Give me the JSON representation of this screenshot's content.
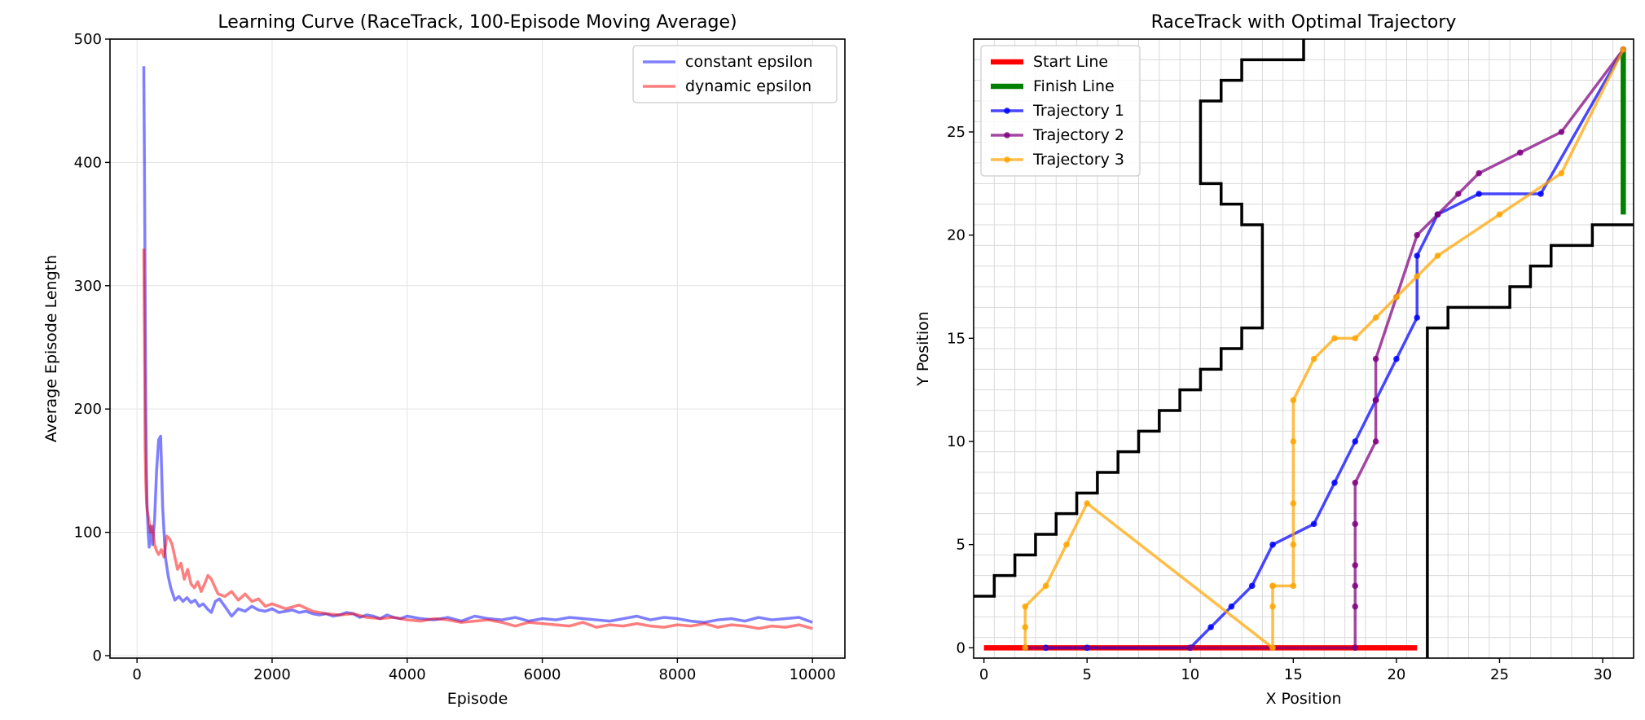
{
  "chart_data": [
    {
      "type": "line",
      "title": "Learning Curve (RaceTrack, 100-Episode Moving Average)",
      "xlabel": "Episode",
      "ylabel": "Average Episode Length",
      "xlim": [
        -400,
        10480
      ],
      "ylim": [
        -2,
        500
      ],
      "xticks": [
        0,
        2000,
        4000,
        6000,
        8000,
        10000
      ],
      "yticks": [
        0,
        100,
        200,
        300,
        400,
        500
      ],
      "grid": true,
      "legend": "top-right",
      "series": [
        {
          "name": "constant epsilon",
          "color": "#0000ff",
          "opacity": 0.5,
          "x": [
            100,
            110,
            120,
            130,
            140,
            150,
            165,
            180,
            200,
            230,
            260,
            290,
            320,
            350,
            380,
            420,
            460,
            500,
            560,
            620,
            680,
            740,
            800,
            860,
            920,
            980,
            1040,
            1100,
            1160,
            1220,
            1300,
            1400,
            1500,
            1600,
            1700,
            1800,
            1900,
            2000,
            2100,
            2200,
            2300,
            2400,
            2500,
            2600,
            2700,
            2800,
            2900,
            3000,
            3100,
            3200,
            3300,
            3400,
            3500,
            3600,
            3700,
            3800,
            3900,
            4000,
            4200,
            4400,
            4600,
            4800,
            5000,
            5200,
            5400,
            5600,
            5800,
            6000,
            6200,
            6400,
            6600,
            6800,
            7000,
            7200,
            7400,
            7600,
            7800,
            8000,
            8200,
            8400,
            8600,
            8800,
            9000,
            9200,
            9400,
            9600,
            9800,
            10000
          ],
          "y": [
            478,
            400,
            300,
            200,
            150,
            120,
            100,
            88,
            105,
            90,
            110,
            150,
            175,
            178,
            120,
            80,
            65,
            55,
            45,
            48,
            44,
            47,
            43,
            45,
            40,
            42,
            38,
            35,
            44,
            46,
            40,
            32,
            38,
            36,
            40,
            37,
            36,
            38,
            35,
            36,
            37,
            35,
            36,
            34,
            33,
            34,
            32,
            33,
            35,
            34,
            31,
            33,
            32,
            30,
            33,
            31,
            30,
            32,
            30,
            29,
            31,
            28,
            32,
            30,
            29,
            31,
            28,
            30,
            29,
            31,
            30,
            29,
            28,
            30,
            32,
            29,
            31,
            30,
            28,
            27,
            29,
            30,
            28,
            31,
            29,
            30,
            31,
            27
          ]
        },
        {
          "name": "dynamic epsilon",
          "color": "#ff0000",
          "opacity": 0.5,
          "x": [
            100,
            110,
            120,
            130,
            140,
            150,
            170,
            200,
            230,
            260,
            290,
            320,
            360,
            400,
            440,
            480,
            520,
            560,
            600,
            650,
            700,
            750,
            800,
            850,
            900,
            950,
            1000,
            1050,
            1100,
            1150,
            1200,
            1300,
            1400,
            1500,
            1600,
            1700,
            1800,
            1900,
            2000,
            2200,
            2400,
            2600,
            2800,
            3000,
            3200,
            3400,
            3600,
            3800,
            4000,
            4200,
            4400,
            4600,
            4800,
            5000,
            5200,
            5400,
            5600,
            5800,
            6000,
            6200,
            6400,
            6600,
            6800,
            7000,
            7200,
            7400,
            7600,
            7800,
            8000,
            8200,
            8400,
            8600,
            8800,
            9000,
            9200,
            9400,
            9600,
            9800,
            10000
          ],
          "y": [
            330,
            260,
            170,
            140,
            125,
            118,
            112,
            100,
            105,
            90,
            85,
            82,
            86,
            80,
            97,
            95,
            90,
            80,
            70,
            75,
            62,
            70,
            58,
            55,
            60,
            52,
            58,
            65,
            62,
            56,
            50,
            48,
            52,
            45,
            50,
            44,
            46,
            40,
            42,
            38,
            41,
            36,
            34,
            33,
            34,
            31,
            30,
            31,
            29,
            28,
            30,
            29,
            27,
            28,
            29,
            27,
            24,
            27,
            26,
            25,
            24,
            27,
            23,
            25,
            24,
            26,
            24,
            23,
            25,
            24,
            26,
            23,
            25,
            24,
            22,
            24,
            23,
            25,
            22
          ]
        }
      ]
    },
    {
      "type": "line",
      "title": "RaceTrack with Optimal Trajectory",
      "xlabel": "X Position",
      "ylabel": "Y Position",
      "xlim": [
        -0.5,
        31.5
      ],
      "ylim": [
        -0.5,
        29.5
      ],
      "xticks": [
        0,
        5,
        10,
        15,
        20,
        25,
        30
      ],
      "yticks": [
        0,
        5,
        10,
        15,
        20,
        25
      ],
      "grid": true,
      "legend": "top-left",
      "boundary_left": {
        "color": "#000000",
        "x": [
          -0.5,
          0.5,
          0.5,
          1.5,
          1.5,
          2.5,
          2.5,
          3.5,
          3.5,
          4.5,
          4.5,
          5.5,
          5.5,
          6.5,
          6.5,
          7.5,
          7.5,
          8.5,
          8.5,
          9.5,
          9.5,
          10.5,
          10.5,
          11.5,
          11.5,
          12.5,
          12.5,
          13.5,
          13.5,
          12.5,
          12.5,
          11.5,
          11.5,
          10.5,
          10.5,
          11.5,
          11.5,
          12.5,
          12.5,
          15.5,
          15.5
        ],
        "y": [
          2.5,
          2.5,
          3.5,
          3.5,
          4.5,
          4.5,
          5.5,
          5.5,
          6.5,
          6.5,
          7.5,
          7.5,
          8.5,
          8.5,
          9.5,
          9.5,
          10.5,
          10.5,
          11.5,
          11.5,
          12.5,
          12.5,
          13.5,
          13.5,
          14.5,
          14.5,
          15.5,
          15.5,
          20.5,
          20.5,
          21.5,
          21.5,
          22.5,
          22.5,
          26.5,
          26.5,
          27.5,
          27.5,
          28.5,
          28.5,
          29.5
        ]
      },
      "boundary_right": {
        "color": "#000000",
        "x": [
          21.5,
          21.5,
          22.5,
          22.5,
          23.5,
          23.5,
          24.5,
          24.5,
          25.5,
          25.5,
          26.5,
          26.5,
          27.5,
          27.5,
          28.5,
          28.5,
          29.5,
          29.5,
          30.5,
          30.5,
          31.5
        ],
        "y": [
          -0.5,
          15.5,
          15.5,
          16.5,
          16.5,
          16.5,
          16.5,
          16.5,
          16.5,
          17.5,
          17.5,
          18.5,
          18.5,
          19.5,
          19.5,
          19.5,
          19.5,
          20.5,
          20.5,
          20.5,
          20.5
        ]
      },
      "series": [
        {
          "name": "Start Line",
          "color": "#ff0000",
          "width": 5,
          "x": [
            0,
            21
          ],
          "y": [
            0,
            0
          ]
        },
        {
          "name": "Finish Line",
          "color": "#008000",
          "width": 5,
          "x": [
            31,
            31
          ],
          "y": [
            21,
            29
          ]
        },
        {
          "name": "Trajectory 1",
          "color": "#0000ff",
          "marker": true,
          "x": [
            3,
            5,
            10,
            11,
            12,
            13,
            14,
            16,
            17,
            18,
            19,
            20,
            21,
            21,
            22,
            24,
            27,
            31
          ],
          "y": [
            0,
            0,
            0,
            1,
            2,
            3,
            5,
            6,
            8,
            10,
            12,
            14,
            16,
            19,
            21,
            22,
            22,
            29
          ]
        },
        {
          "name": "Trajectory 2",
          "color": "#800080",
          "marker": true,
          "x": [
            2,
            10,
            18,
            18,
            18,
            18,
            18,
            18,
            19,
            19,
            19,
            20,
            21,
            22,
            23,
            24,
            26,
            28,
            31
          ],
          "y": [
            0,
            0,
            0,
            2,
            3,
            4,
            6,
            8,
            10,
            12,
            14,
            17,
            20,
            21,
            22,
            23,
            24,
            25,
            29
          ]
        },
        {
          "name": "Trajectory 3",
          "color": "#ffa500",
          "marker": true,
          "x": [
            2,
            2,
            2,
            3,
            4,
            5,
            14,
            14,
            14,
            14,
            15,
            15,
            15,
            15,
            15,
            16,
            17,
            18,
            19,
            20,
            21,
            22,
            25,
            28,
            31
          ],
          "y": [
            0,
            1,
            2,
            3,
            5,
            7,
            0,
            2,
            3,
            3,
            3,
            5,
            7,
            10,
            12,
            14,
            15,
            15,
            16,
            17,
            18,
            19,
            21,
            23,
            29
          ]
        }
      ]
    }
  ]
}
